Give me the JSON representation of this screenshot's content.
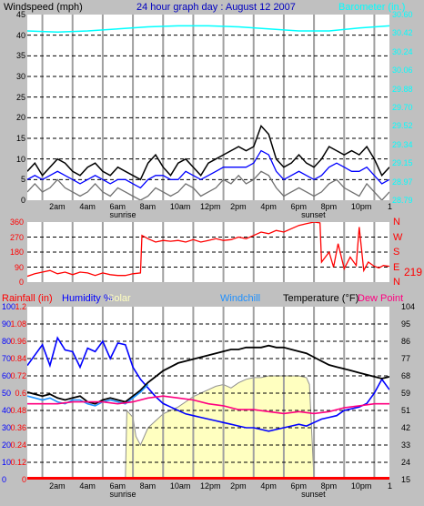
{
  "title": "24 hour graph day : August 12 2007",
  "colors": {
    "background": "#c0c0c0",
    "plot_bg": "#ffffff",
    "wind_black": "#000000",
    "wind_avg": "#0000ff",
    "wind_gray": "#707070",
    "barometer": "#00ffff",
    "direction": "#ff0000",
    "humidity": "#0000ff",
    "solar": "#ffffc0",
    "solar_edge": "#909090",
    "temperature": "#000000",
    "dewpoint": "#ff0080",
    "rainfall": "#ff0000",
    "windchill": "#1e90ff",
    "daylight_line": "#a0a0a0"
  },
  "x_axis": {
    "hour_labels": [
      "2am",
      "4am",
      "6am",
      "8am",
      "10am",
      "12pm",
      "2pm",
      "4pm",
      "6pm",
      "8pm",
      "10pm"
    ],
    "sunrise_label": "sunrise",
    "sunset_label": "sunset",
    "end_label": "1"
  },
  "chart_data": [
    {
      "type": "line",
      "name": "wind",
      "left_title": "Windspeed (mph)",
      "right_title": "Barometer (in.)",
      "left_ticks": [
        "45",
        "40",
        "35",
        "30",
        "25",
        "20",
        "15",
        "10",
        "5",
        "0"
      ],
      "right_ticks": [
        "30.60",
        "30.42",
        "30.24",
        "30.06",
        "29.88",
        "29.70",
        "29.52",
        "29.34",
        "29.15",
        "28.97",
        "28.79"
      ],
      "ylim_left": [
        0,
        45
      ],
      "ylim_right": [
        28.79,
        30.6
      ],
      "x_range_hours": [
        0,
        24
      ],
      "series": [
        {
          "key": "gust",
          "color_key": "wind_black",
          "x": [
            0,
            0.5,
            1,
            1.5,
            2,
            2.5,
            3,
            3.5,
            4,
            4.5,
            5,
            5.5,
            6,
            6.5,
            7,
            7.5,
            8,
            8.5,
            9,
            9.5,
            10,
            10.5,
            11,
            11.5,
            12,
            12.5,
            13,
            13.5,
            14,
            14.5,
            15,
            15.5,
            16,
            16.5,
            17,
            17.5,
            18,
            18.5,
            19,
            19.5,
            20,
            20.5,
            21,
            21.5,
            22,
            22.5,
            23,
            23.5,
            24
          ],
          "y": [
            7,
            9,
            6,
            8,
            10,
            9,
            7,
            6,
            8,
            9,
            7,
            6,
            8,
            7,
            6,
            5,
            9,
            11,
            8,
            6,
            9,
            10,
            8,
            6,
            9,
            10,
            11,
            12,
            13,
            12,
            13,
            18,
            16,
            10,
            8,
            9,
            11,
            9,
            8,
            10,
            13,
            12,
            11,
            12,
            11,
            13,
            10,
            6,
            8
          ]
        },
        {
          "key": "avg",
          "color_key": "wind_avg",
          "x": [
            0,
            0.5,
            1,
            1.5,
            2,
            2.5,
            3,
            3.5,
            4,
            4.5,
            5,
            5.5,
            6,
            6.5,
            7,
            7.5,
            8,
            8.5,
            9,
            9.5,
            10,
            10.5,
            11,
            11.5,
            12,
            12.5,
            13,
            13.5,
            14,
            14.5,
            15,
            15.5,
            16,
            16.5,
            17,
            17.5,
            18,
            18.5,
            19,
            19.5,
            20,
            20.5,
            21,
            21.5,
            22,
            22.5,
            23,
            23.5,
            24
          ],
          "y": [
            5,
            6,
            5,
            6,
            7,
            6,
            5,
            4,
            5,
            6,
            5,
            4,
            5,
            5,
            4,
            3,
            5,
            6,
            6,
            5,
            5,
            7,
            6,
            5,
            6,
            7,
            8,
            8,
            8,
            8,
            9,
            12,
            11,
            7,
            5,
            6,
            7,
            6,
            5,
            6,
            8,
            9,
            8,
            7,
            7,
            8,
            6,
            4,
            5
          ]
        },
        {
          "key": "low",
          "color_key": "wind_gray",
          "x": [
            0,
            0.5,
            1,
            1.5,
            2,
            2.5,
            3,
            3.5,
            4,
            4.5,
            5,
            5.5,
            6,
            6.5,
            7,
            7.5,
            8,
            8.5,
            9,
            9.5,
            10,
            10.5,
            11,
            11.5,
            12,
            12.5,
            13,
            13.5,
            14,
            14.5,
            15,
            15.5,
            16,
            16.5,
            17,
            17.5,
            18,
            18.5,
            19,
            19.5,
            20,
            20.5,
            21,
            21.5,
            22,
            22.5,
            23,
            23.5,
            24
          ],
          "y": [
            2,
            4,
            2,
            3,
            5,
            3,
            2,
            1,
            2,
            4,
            2,
            1,
            3,
            2,
            1,
            0,
            1,
            3,
            2,
            1,
            2,
            4,
            3,
            1,
            2,
            3,
            5,
            4,
            6,
            4,
            5,
            7,
            6,
            3,
            1,
            2,
            3,
            2,
            1,
            2,
            4,
            5,
            3,
            2,
            1,
            4,
            2,
            0,
            2
          ]
        },
        {
          "key": "barometer",
          "color_key": "barometer",
          "axis": "right",
          "x": [
            0,
            2,
            4,
            6,
            8,
            10,
            12,
            14,
            16,
            18,
            20,
            22,
            24
          ],
          "y": [
            30.44,
            30.43,
            30.44,
            30.46,
            30.48,
            30.49,
            30.49,
            30.48,
            30.46,
            30.44,
            30.44,
            30.47,
            30.49
          ]
        }
      ]
    },
    {
      "type": "line",
      "name": "direction",
      "left_ticks": [
        "360",
        "270",
        "180",
        "90",
        "0"
      ],
      "compass": [
        "N",
        "W",
        "S",
        "E",
        "N"
      ],
      "current_value": "219",
      "ylim": [
        0,
        360
      ],
      "x_range_hours": [
        0,
        24
      ],
      "series": [
        {
          "key": "direction",
          "color_key": "direction",
          "x": [
            0,
            0.5,
            1,
            1.5,
            2,
            2.5,
            3,
            3.5,
            4,
            4.5,
            5,
            5.5,
            6,
            6.5,
            7,
            7.5,
            7.6,
            8,
            8.5,
            9,
            9.5,
            10,
            10.5,
            11,
            11.5,
            12,
            12.5,
            13,
            13.5,
            14,
            14.5,
            15,
            15.5,
            16,
            16.5,
            17,
            17.5,
            18,
            18.5,
            19,
            19.4,
            19.5,
            20,
            20.3,
            20.6,
            21,
            21.4,
            21.8,
            22,
            22.3,
            22.6,
            23,
            23.3,
            23.6,
            24
          ],
          "y": [
            35,
            50,
            60,
            70,
            50,
            60,
            45,
            60,
            55,
            40,
            55,
            45,
            40,
            40,
            50,
            55,
            280,
            260,
            240,
            250,
            245,
            250,
            240,
            255,
            240,
            250,
            260,
            250,
            255,
            270,
            260,
            280,
            300,
            290,
            310,
            300,
            320,
            340,
            350,
            360,
            355,
            120,
            180,
            90,
            230,
            80,
            150,
            100,
            330,
            70,
            120,
            95,
            85,
            100,
            95
          ]
        }
      ]
    },
    {
      "type": "line",
      "name": "climate",
      "rain_title": "Rainfall (in)",
      "humidity_title": "Humidity %",
      "solar_title": "Solar",
      "windchill_title": "Windchill",
      "temp_title": "Temperature (°F)",
      "dew_title": "Dew Point",
      "humidity_ticks": [
        "100",
        "90",
        "80",
        "70",
        "60",
        "50",
        "40",
        "30",
        "20",
        "10",
        "0"
      ],
      "rain_ticks": [
        "1.2",
        "1.08",
        "0.96",
        "0.84",
        "0.72",
        "0.6",
        "0.48",
        "0.36",
        "0.24",
        "0.12",
        "0"
      ],
      "temp_ticks": [
        "104",
        "95",
        "86",
        "77",
        "68",
        "59",
        "51",
        "42",
        "33",
        "24",
        "15"
      ],
      "ylim_humidity": [
        0,
        100
      ],
      "ylim_temp": [
        15,
        104
      ],
      "x_range_hours": [
        0,
        24
      ],
      "series": [
        {
          "key": "humidity",
          "color_key": "humidity",
          "axis": "humidity",
          "x": [
            0,
            0.5,
            1,
            1.5,
            2,
            2.5,
            3,
            3.5,
            4,
            4.5,
            5,
            5.5,
            6,
            6.5,
            7,
            7.5,
            8,
            8.5,
            9,
            9.5,
            10,
            10.5,
            11,
            11.5,
            12,
            12.5,
            13,
            13.5,
            14,
            14.5,
            15,
            15.5,
            16,
            16.5,
            17,
            17.5,
            18,
            18.5,
            19,
            19.5,
            20,
            20.5,
            21,
            21.5,
            22,
            22.5,
            23,
            23.5,
            24
          ],
          "y": [
            66,
            72,
            78,
            66,
            82,
            75,
            74,
            65,
            76,
            74,
            80,
            70,
            79,
            78,
            65,
            58,
            53,
            48,
            44,
            42,
            40,
            38,
            37,
            36,
            35,
            34,
            33,
            32,
            31,
            30,
            30,
            29,
            28,
            29,
            30,
            31,
            32,
            31,
            33,
            35,
            36,
            37,
            40,
            41,
            42,
            44,
            50,
            58,
            52
          ]
        },
        {
          "key": "temperature",
          "color_key": "temperature",
          "axis": "temp",
          "x": [
            0,
            0.5,
            1,
            1.5,
            2,
            2.5,
            3,
            3.5,
            4,
            4.5,
            5,
            5.5,
            6,
            6.5,
            7,
            7.5,
            8,
            8.5,
            9,
            9.5,
            10,
            10.5,
            11,
            11.5,
            12,
            12.5,
            13,
            13.5,
            14,
            14.5,
            15,
            15.5,
            16,
            16.5,
            17,
            17.5,
            18,
            18.5,
            19,
            19.5,
            20,
            20.5,
            21,
            21.5,
            22,
            22.5,
            23,
            23.5,
            24
          ],
          "y": [
            60,
            59,
            58,
            59,
            57,
            56,
            57,
            58,
            55,
            54,
            56,
            57,
            56,
            55,
            58,
            61,
            65,
            68,
            71,
            73,
            75,
            76,
            77,
            78,
            79,
            80,
            81,
            82,
            82,
            83,
            83,
            83,
            84,
            83,
            83,
            82,
            81,
            80,
            78,
            76,
            74,
            73,
            72,
            71,
            70,
            69,
            68,
            67,
            68
          ]
        },
        {
          "key": "windchill",
          "color_key": "windchill",
          "axis": "temp",
          "x": [
            0,
            0.5,
            1,
            1.5,
            2,
            2.5,
            3,
            3.5,
            4,
            4.5,
            5,
            5.5,
            6,
            6.5,
            7,
            7.5,
            8
          ],
          "y": [
            58,
            57,
            56,
            57,
            55,
            54,
            56,
            56,
            54,
            53,
            55,
            56,
            55,
            54,
            57,
            60,
            64
          ]
        },
        {
          "key": "dewpoint",
          "color_key": "dewpoint",
          "axis": "temp",
          "x": [
            0,
            1,
            2,
            3,
            4,
            5,
            6,
            7,
            8,
            9,
            10,
            11,
            12,
            13,
            14,
            15,
            16,
            17,
            18,
            19,
            20,
            21,
            22,
            23,
            24
          ],
          "y": [
            54,
            54,
            54,
            55,
            55,
            55,
            54,
            55,
            57,
            58,
            57,
            56,
            54,
            53,
            51,
            51,
            50,
            49,
            50,
            49,
            50,
            52,
            53,
            54,
            54
          ]
        },
        {
          "key": "solar",
          "color_key": "solar",
          "axis": "humidity",
          "x": [
            6.5,
            6.6,
            7,
            7.2,
            7.5,
            8,
            8.5,
            9,
            9.5,
            10,
            10.5,
            11,
            11.5,
            12,
            12.5,
            13,
            13.5,
            14,
            14.5,
            15,
            15.5,
            16,
            16.5,
            17,
            17.5,
            18,
            18.5,
            18.7,
            19
          ],
          "y": [
            0,
            40,
            36,
            25,
            20,
            30,
            34,
            38,
            40,
            42,
            45,
            48,
            50,
            52,
            54,
            55,
            53,
            56,
            58,
            59,
            59,
            60,
            60,
            60,
            60,
            60,
            59,
            55,
            0
          ]
        },
        {
          "key": "rainfall",
          "color_key": "rainfall",
          "axis": "humidity",
          "x": [
            0,
            24
          ],
          "y": [
            0,
            0
          ]
        }
      ]
    }
  ]
}
